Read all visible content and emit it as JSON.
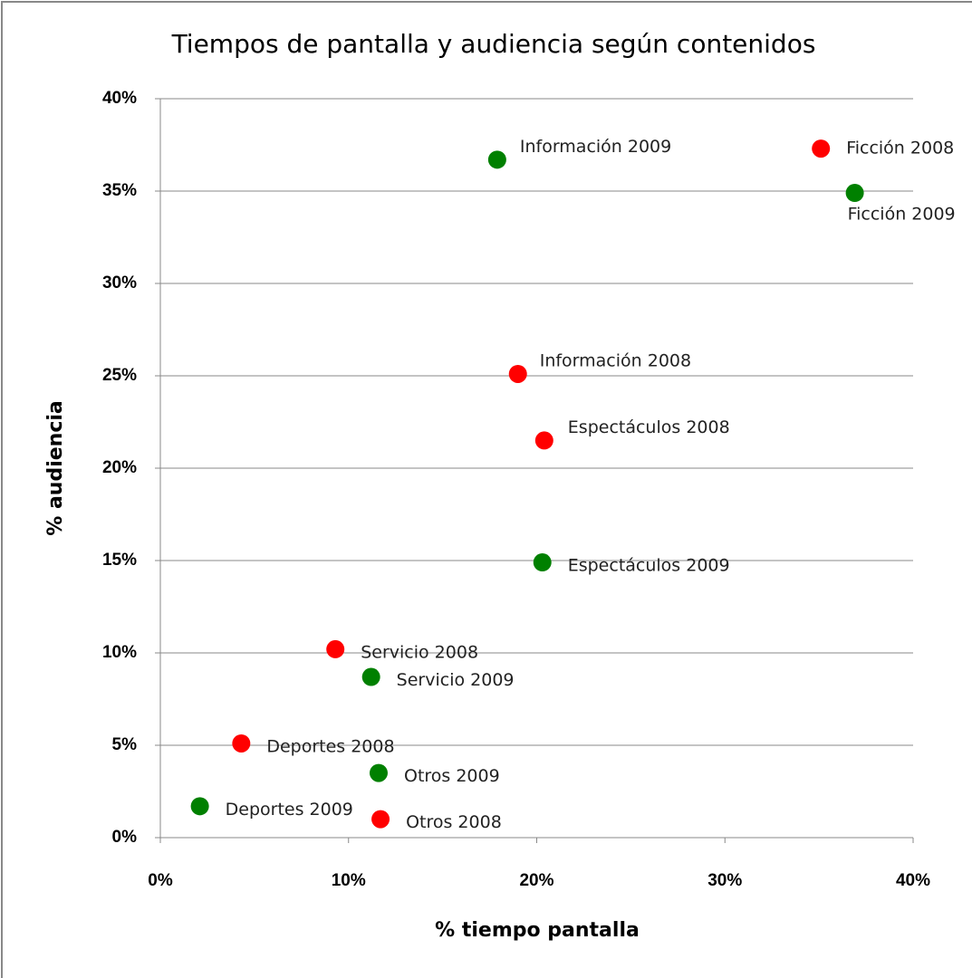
{
  "chart_data": {
    "type": "scatter",
    "title": "Tiempos de pantalla y audiencia según contenidos",
    "x_label": "% tiempo pantalla",
    "y_label": "% audiencia",
    "xlim": [
      0,
      40
    ],
    "ylim": [
      0,
      40
    ],
    "xticks": [
      {
        "value": 0,
        "label": "0%"
      },
      {
        "value": 10,
        "label": "10%"
      },
      {
        "value": 20,
        "label": "20%"
      },
      {
        "value": 30,
        "label": "30%"
      },
      {
        "value": 40,
        "label": "40%"
      }
    ],
    "yticks": [
      {
        "value": 0,
        "label": "0%"
      },
      {
        "value": 5,
        "label": "5%"
      },
      {
        "value": 10,
        "label": "10%"
      },
      {
        "value": 15,
        "label": "15%"
      },
      {
        "value": 20,
        "label": "20%"
      },
      {
        "value": 25,
        "label": "25%"
      },
      {
        "value": 30,
        "label": "30%"
      },
      {
        "value": 35,
        "label": "35%"
      },
      {
        "value": 40,
        "label": "40%"
      }
    ],
    "grid": true,
    "series": [
      {
        "color": "#ff0000",
        "labels": [
          "Ficción 2008",
          "Información 2008",
          "Espectáculos 2008",
          "Servicio 2008",
          "Deportes 2008",
          "Otros 2008"
        ],
        "x": [
          35.1,
          19.0,
          20.4,
          9.3,
          4.3,
          11.7
        ],
        "values": [
          37.3,
          25.1,
          21.5,
          10.2,
          5.1,
          1.0
        ]
      },
      {
        "color": "#008000",
        "labels": [
          "Información 2009",
          "Ficción 2009",
          "Espectáculos 2009",
          "Servicio 2009",
          "Otros 2009",
          "Deportes 2009"
        ],
        "x": [
          17.9,
          36.9,
          20.3,
          11.2,
          11.6,
          2.1
        ],
        "values": [
          36.7,
          34.9,
          14.9,
          8.7,
          3.5,
          1.7
        ]
      }
    ]
  }
}
